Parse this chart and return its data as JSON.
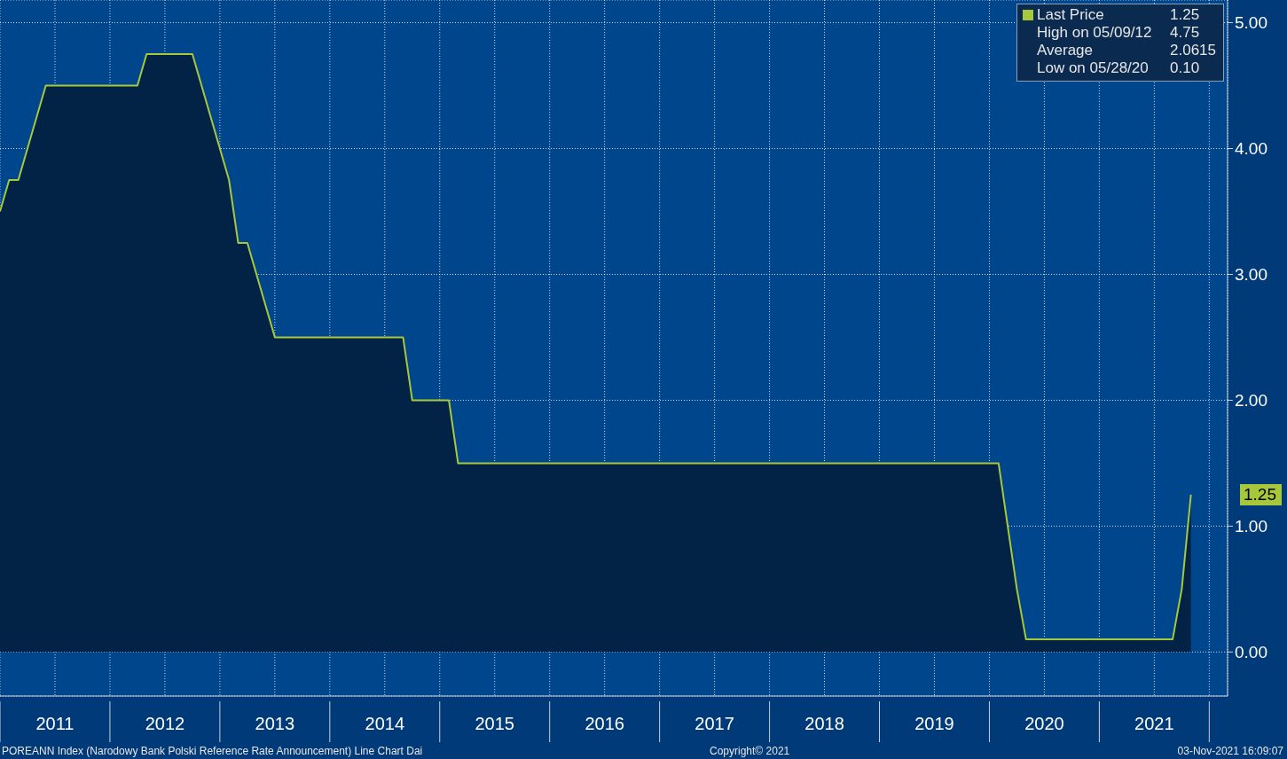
{
  "chart_data": {
    "type": "area",
    "x": [
      "2011-01-01",
      "2011-02-01",
      "2011-03-01",
      "2011-04-01",
      "2011-05-01",
      "2011-06-01",
      "2012-04-01",
      "2012-05-01",
      "2012-10-01",
      "2012-11-01",
      "2012-12-01",
      "2013-01-01",
      "2013-02-01",
      "2013-03-01",
      "2013-04-01",
      "2013-05-01",
      "2013-06-01",
      "2013-07-01",
      "2014-09-01",
      "2014-10-01",
      "2015-02-01",
      "2015-03-01",
      "2020-02-01",
      "2020-03-01",
      "2020-04-01",
      "2020-05-01",
      "2021-09-01",
      "2021-10-01",
      "2021-11-01"
    ],
    "series": [
      {
        "color": "#022346",
        "values": [
          3.5,
          3.75,
          3.75,
          4.0,
          4.25,
          4.5,
          4.5,
          4.75,
          4.75,
          4.5,
          4.25,
          4.0,
          3.75,
          3.25,
          3.25,
          3.0,
          2.75,
          2.5,
          2.5,
          2.0,
          2.0,
          1.5,
          1.5,
          1.0,
          0.5,
          0.1,
          0.1,
          0.5,
          1.25
        ]
      },
      {
        "type": "line",
        "name": "Last Price",
        "color": "#a8c83c",
        "values": [
          3.5,
          3.75,
          3.75,
          4.0,
          4.25,
          4.5,
          4.5,
          4.75,
          4.75,
          4.5,
          4.25,
          4.0,
          3.75,
          3.25,
          3.25,
          3.0,
          2.75,
          2.5,
          2.5,
          2.0,
          2.0,
          1.5,
          1.5,
          1.0,
          0.5,
          0.1,
          0.1,
          0.5,
          1.25
        ]
      }
    ],
    "xlim": [
      "2011-01-01",
      "2022-03-01"
    ],
    "xticks": [
      {
        "value": "2011-01-01",
        "label": null
      },
      {
        "value": "2011-07-01",
        "label": "2011"
      },
      {
        "value": "2012-01-01",
        "label": null
      },
      {
        "value": "2012-07-01",
        "label": "2012"
      },
      {
        "value": "2013-01-01",
        "label": null
      },
      {
        "value": "2013-07-01",
        "label": "2013"
      },
      {
        "value": "2014-01-01",
        "label": null
      },
      {
        "value": "2014-07-01",
        "label": "2014"
      },
      {
        "value": "2015-01-01",
        "label": null
      },
      {
        "value": "2015-07-01",
        "label": "2015"
      },
      {
        "value": "2016-01-01",
        "label": null
      },
      {
        "value": "2016-07-01",
        "label": "2016"
      },
      {
        "value": "2017-01-01",
        "label": null
      },
      {
        "value": "2017-07-01",
        "label": "2017"
      },
      {
        "value": "2018-01-01",
        "label": null
      },
      {
        "value": "2018-07-01",
        "label": "2018"
      },
      {
        "value": "2019-01-01",
        "label": null
      },
      {
        "value": "2019-07-01",
        "label": "2019"
      },
      {
        "value": "2020-01-01",
        "label": null
      },
      {
        "value": "2020-07-01",
        "label": "2020"
      },
      {
        "value": "2021-01-01",
        "label": null
      },
      {
        "value": "2021-07-01",
        "label": "2021"
      },
      {
        "value": "2022-01-01",
        "label": null
      }
    ],
    "ylim": [
      -0.35,
      5.18
    ],
    "yticks": [
      {
        "value": 0,
        "label": "0.00"
      },
      {
        "value": 1,
        "label": "1.00"
      },
      {
        "value": 2,
        "label": "2.00"
      },
      {
        "value": 3,
        "label": "3.00"
      },
      {
        "value": 4,
        "label": "4.00"
      },
      {
        "value": 5,
        "label": "5.00"
      }
    ],
    "grid": true,
    "legend": "top right",
    "annotations": [
      "1.25",
      "High on 05/09/12",
      "4.75",
      "Average",
      "2.0615",
      "Low on 05/28/20",
      "0.10",
      "1.25",
      "POREANN Index (Narodowy Bank Polski Reference Rate Announcement) Line Chart  Dai",
      "Copyright© 2021",
      "03-Nov-2021 16:09:07"
    ]
  }
}
